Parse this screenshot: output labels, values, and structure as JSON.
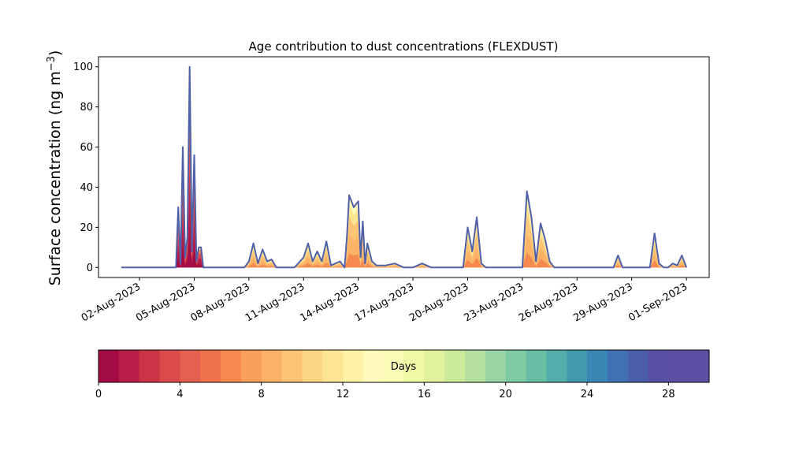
{
  "chart_data": [
    {
      "type": "area",
      "title": "Age contribution to dust concentrations (FLEXDUST)",
      "ylabel": "Surface concentration (ng m",
      "ylabel_superscript": "−3",
      "ylabel_close": ")",
      "xlabel": "",
      "ylim": [
        -5,
        105
      ],
      "yticks": [
        0,
        20,
        40,
        60,
        80,
        100
      ],
      "xlim": [
        "2023-07-30T18:00",
        "2023-09-02T06:00"
      ],
      "xticks": [
        "02-Aug-2023",
        "05-Aug-2023",
        "08-Aug-2023",
        "11-Aug-2023",
        "14-Aug-2023",
        "17-Aug-2023",
        "20-Aug-2023",
        "23-Aug-2023",
        "26-Aug-2023",
        "29-Aug-2023",
        "01-Sep-2023"
      ],
      "xtick_dates": [
        "2023-08-02",
        "2023-08-05",
        "2023-08-08",
        "2023-08-11",
        "2023-08-14",
        "2023-08-17",
        "2023-08-20",
        "2023-08-23",
        "2023-08-26",
        "2023-08-29",
        "2023-09-01"
      ],
      "total_line_color": "#5060a8",
      "series_total": {
        "name": "",
        "x": [
          "2023-08-01T00:00",
          "2023-08-01T12:00",
          "2023-08-02T00:00",
          "2023-08-02T12:00",
          "2023-08-03T00:00",
          "2023-08-03T12:00",
          "2023-08-04T00:00",
          "2023-08-04T03:00",
          "2023-08-04T06:00",
          "2023-08-04T09:00",
          "2023-08-04T12:00",
          "2023-08-04T15:00",
          "2023-08-04T18:00",
          "2023-08-04T21:00",
          "2023-08-05T00:00",
          "2023-08-05T03:00",
          "2023-08-05T06:00",
          "2023-08-05T09:00",
          "2023-08-05T12:00",
          "2023-08-05T15:00",
          "2023-08-05T18:00",
          "2023-08-06T00:00",
          "2023-08-06T12:00",
          "2023-08-07T00:00",
          "2023-08-07T12:00",
          "2023-08-07T18:00",
          "2023-08-08T00:00",
          "2023-08-08T06:00",
          "2023-08-08T12:00",
          "2023-08-08T18:00",
          "2023-08-09T00:00",
          "2023-08-09T06:00",
          "2023-08-09T12:00",
          "2023-08-09T18:00",
          "2023-08-10T00:00",
          "2023-08-10T12:00",
          "2023-08-11T00:00",
          "2023-08-11T06:00",
          "2023-08-11T12:00",
          "2023-08-11T18:00",
          "2023-08-12T00:00",
          "2023-08-12T06:00",
          "2023-08-12T12:00",
          "2023-08-12T18:00",
          "2023-08-13T00:00",
          "2023-08-13T06:00",
          "2023-08-13T09:00",
          "2023-08-13T12:00",
          "2023-08-13T18:00",
          "2023-08-14T00:00",
          "2023-08-14T03:00",
          "2023-08-14T06:00",
          "2023-08-14T09:00",
          "2023-08-14T12:00",
          "2023-08-14T18:00",
          "2023-08-15T00:00",
          "2023-08-15T12:00",
          "2023-08-16T00:00",
          "2023-08-16T12:00",
          "2023-08-16T18:00",
          "2023-08-17T00:00",
          "2023-08-17T12:00",
          "2023-08-18T00:00",
          "2023-08-18T12:00",
          "2023-08-19T00:00",
          "2023-08-19T06:00",
          "2023-08-19T12:00",
          "2023-08-19T18:00",
          "2023-08-20T00:00",
          "2023-08-20T06:00",
          "2023-08-20T12:00",
          "2023-08-20T18:00",
          "2023-08-21T00:00",
          "2023-08-21T12:00",
          "2023-08-22T00:00",
          "2023-08-22T12:00",
          "2023-08-22T18:00",
          "2023-08-23T00:00",
          "2023-08-23T06:00",
          "2023-08-23T12:00",
          "2023-08-23T18:00",
          "2023-08-24T00:00",
          "2023-08-24T06:00",
          "2023-08-24T12:00",
          "2023-08-24T18:00",
          "2023-08-25T00:00",
          "2023-08-25T12:00",
          "2023-08-26T00:00",
          "2023-08-26T12:00",
          "2023-08-27T00:00",
          "2023-08-27T12:00",
          "2023-08-28T00:00",
          "2023-08-28T06:00",
          "2023-08-28T12:00",
          "2023-08-28T18:00",
          "2023-08-29T00:00",
          "2023-08-29T12:00",
          "2023-08-30T00:00",
          "2023-08-30T06:00",
          "2023-08-30T12:00",
          "2023-08-30T18:00",
          "2023-08-31T00:00",
          "2023-08-31T06:00",
          "2023-08-31T12:00",
          "2023-08-31T18:00",
          "2023-09-01T00:00"
        ],
        "y": [
          0,
          0,
          0,
          0,
          0,
          0,
          0,
          30,
          2,
          60,
          5,
          15,
          100,
          8,
          56,
          3,
          10,
          10,
          0,
          0,
          0,
          0,
          0,
          0,
          0,
          0,
          3,
          12,
          2,
          9,
          3,
          4,
          0,
          0,
          0,
          0,
          5,
          12,
          3,
          8,
          3,
          13,
          1,
          2,
          3,
          0,
          15,
          36,
          30,
          33,
          5,
          23,
          2,
          12,
          3,
          1,
          1,
          2,
          0,
          0,
          0,
          2,
          0,
          0,
          0,
          0,
          0,
          0,
          20,
          8,
          25,
          2,
          0,
          0,
          0,
          0,
          0,
          0,
          38,
          25,
          3,
          22,
          14,
          3,
          0,
          0,
          0,
          0,
          0,
          0,
          0,
          0,
          6,
          0,
          0,
          0,
          0,
          0,
          17,
          2,
          0,
          0,
          2,
          1,
          6,
          0
        ]
      }
    },
    {
      "type": "heatmap",
      "title": "",
      "label": "Days",
      "vmin": 0,
      "vmax": 30,
      "bins": 30,
      "ticks": [
        "0",
        "4",
        "8",
        "12",
        "16",
        "20",
        "24",
        "28"
      ],
      "tick_values": [
        0,
        4,
        8,
        12,
        16,
        20,
        24,
        28
      ],
      "colors": [
        "#a30b45",
        "#b91c47",
        "#cd3346",
        "#dc4a4c",
        "#e6604f",
        "#ef744c",
        "#f5894e",
        "#f89f59",
        "#fbb264",
        "#fdc573",
        "#fdd683",
        "#fee593",
        "#fef2a6",
        "#fffbba",
        "#f9fcb4",
        "#eef8a5",
        "#e0f29d",
        "#cbea9b",
        "#b4df9f",
        "#99d5a4",
        "#7fcba4",
        "#68bea5",
        "#53aeab",
        "#419aad",
        "#3a87b6",
        "#3e72b2",
        "#4a5ea9",
        "#5850a3",
        "#5e4fa2",
        "#5e4fa2"
      ]
    }
  ]
}
